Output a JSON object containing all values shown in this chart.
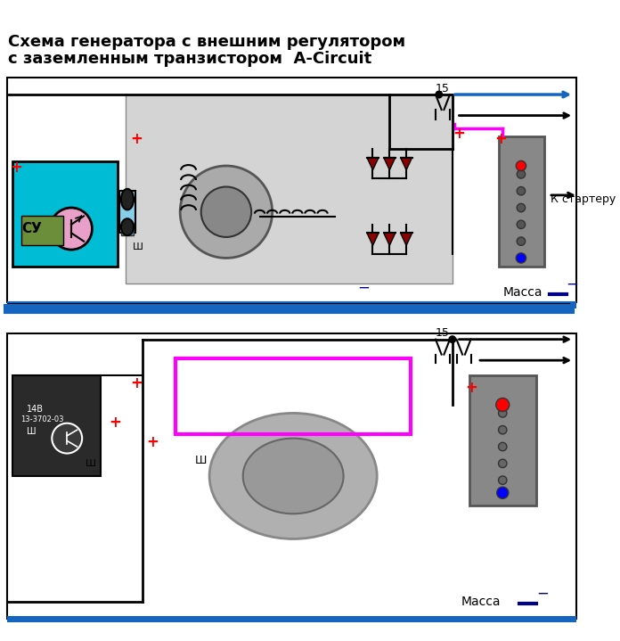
{
  "title_line1": "Схема генератора с внешним регулятором",
  "title_line2": "с заземленным транзистором  A-Circuit",
  "label_massa": "Масса",
  "label_k_starteru": "К стартеру",
  "label_15_top": "15",
  "label_15_bot": "15",
  "bg_color": "#ffffff",
  "panel_bg": "#d3d3d3",
  "cyan_box": "#00bcd4",
  "blue_bar": "#1565c0",
  "pink_line": "#ff00ff",
  "red_plus": "#ff0000",
  "dark_blue_minus": "#00008b",
  "arrow_blue": "#1565c0",
  "arrow_black": "#000000",
  "diode_color": "#8B0000",
  "title_fontsize": 13,
  "label_fontsize": 10
}
